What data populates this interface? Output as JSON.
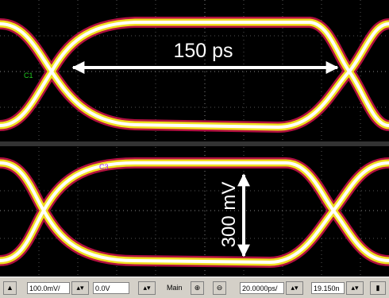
{
  "screen": {
    "annotations": {
      "time": "150 ps",
      "voltage": "300 mV"
    },
    "channels": [
      "C1",
      "C3"
    ]
  },
  "toolbar": {
    "scale": "100.0mV/",
    "offset": "0.0V",
    "timebase_mode": "Main",
    "time_scale": "20.0000ps/",
    "delay": "19.150n"
  }
}
